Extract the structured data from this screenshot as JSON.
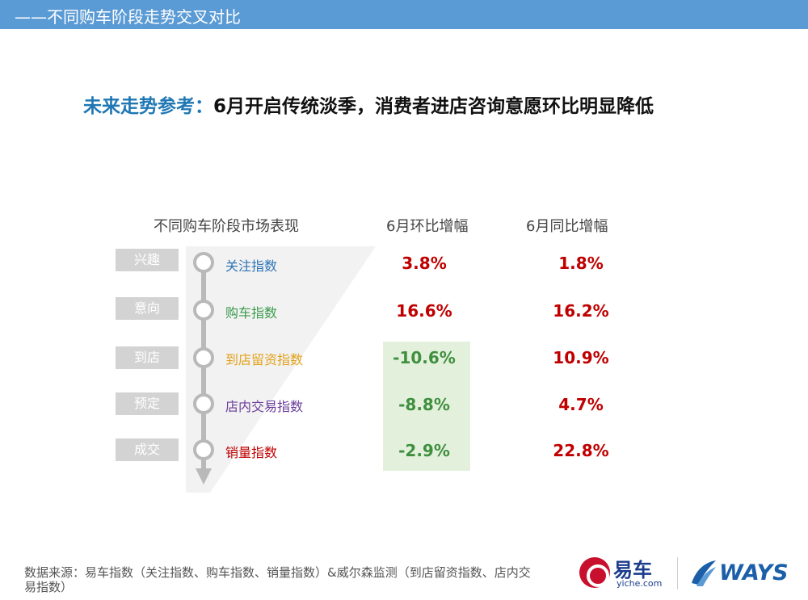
{
  "header": {
    "title": "——不同购车阶段走势交叉对比"
  },
  "headline": {
    "lead": "未来走势参考：",
    "rest": "6月开启传统淡季，消费者进店咨询意愿环比明显降低"
  },
  "table": {
    "headers": [
      "不同购车阶段市场表现",
      "6月环比增幅",
      "6月同比增幅"
    ],
    "rows": [
      {
        "stage": "兴趣",
        "index": "关注指数",
        "index_color": "#2e75b6",
        "mom": "3.8%",
        "yoy": "1.8%"
      },
      {
        "stage": "意向",
        "index": "购车指数",
        "index_color": "#3a9b4c",
        "mom": "16.6%",
        "yoy": "16.2%"
      },
      {
        "stage": "到店",
        "index": "到店留资指数",
        "index_color": "#e3a21a",
        "mom": "-10.6%",
        "yoy": "10.9%"
      },
      {
        "stage": "预定",
        "index": "店内交易指数",
        "index_color": "#6a3d9a",
        "mom": "-8.8%",
        "yoy": "4.7%"
      },
      {
        "stage": "成交",
        "index": "销量指数",
        "index_color": "#c00000",
        "mom": "-2.9%",
        "yoy": "22.8%"
      }
    ]
  },
  "footer": {
    "source": "数据来源：易车指数（关注指数、购车指数、销量指数）&威尔森监测（到店留资指数、店内交易指数）"
  },
  "logos": {
    "yiche_cn": "易车",
    "yiche_en": "yiche.com",
    "ways": "WAYS"
  },
  "colors": {
    "header_bar": "#5b9bd5",
    "headline_lead": "#1f77b4",
    "value_red": "#c00000",
    "value_green": "#3f8f3f",
    "highlight_box": "#e3f1dc"
  }
}
